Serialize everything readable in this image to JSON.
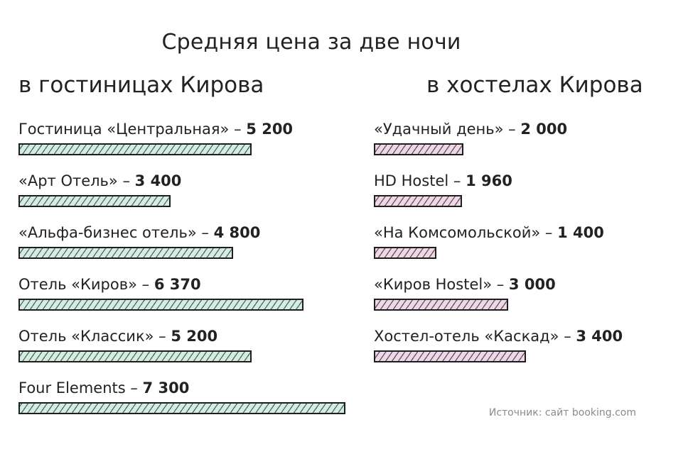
{
  "title": "Средняя цена за две ночи",
  "source": "Источник: сайт booking.com",
  "colors": {
    "hotel_fill": "#d6ece2",
    "hotel_hatch": "#4a6b5c",
    "hostel_fill": "#ecd9e6",
    "hostel_hatch": "#6b4a5f",
    "outline": "#1e1e1e"
  },
  "chart_data": [
    {
      "type": "bar",
      "orientation": "horizontal",
      "title": "в гостиницах Кирова",
      "categories": [
        "Гостиница «Центральная»",
        "«Арт Отель»",
        "«Альфа-бизнес отель»",
        "Отель «Киров»",
        "Отель «Классик»",
        "Four Elements"
      ],
      "values": [
        5200,
        3400,
        4800,
        6370,
        5200,
        7300
      ],
      "value_labels": [
        "5 200",
        "3 400",
        "4 800",
        "6 370",
        "5 200",
        "7 300"
      ],
      "xlim": [
        0,
        7300
      ],
      "grid": false,
      "legend": "none"
    },
    {
      "type": "bar",
      "orientation": "horizontal",
      "title": "в хостелах Кирова",
      "categories": [
        "«Удачный день»",
        "HD Hostel",
        "«На Комсомольской»",
        "«Киров Hostel»",
        "Хостел-отель «Каскад»"
      ],
      "values": [
        2000,
        1960,
        1400,
        3000,
        3400
      ],
      "value_labels": [
        "2 000",
        "1 960",
        "1 400",
        "3 000",
        "3 400"
      ],
      "xlim": [
        0,
        7300
      ],
      "grid": false,
      "legend": "none"
    }
  ]
}
